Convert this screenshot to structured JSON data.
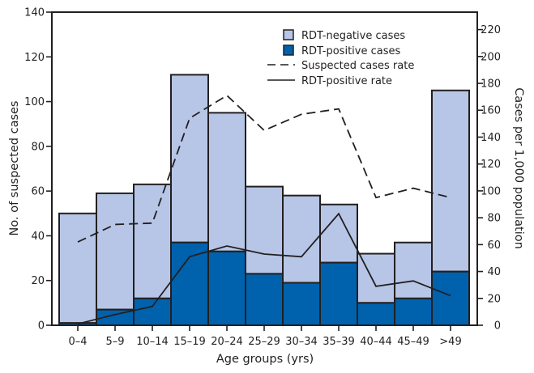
{
  "chart_data": {
    "type": "bar",
    "stacked": true,
    "title": "",
    "xlabel": "Age groups (yrs)",
    "ylabel": "No. of suspected cases",
    "y2label": "Cases per 1,000 population",
    "ylim": [
      0,
      140
    ],
    "y2lim": [
      0,
      233
    ],
    "yticks": [
      0,
      20,
      40,
      60,
      80,
      100,
      120,
      140
    ],
    "y2ticks": [
      0,
      20,
      40,
      60,
      80,
      100,
      120,
      140,
      160,
      180,
      200,
      220
    ],
    "grid": false,
    "legend_position": "top-right",
    "categories": [
      "0–4",
      "5–9",
      "10–14",
      "15–19",
      "20–24",
      "25–29",
      "30–34",
      "35–39",
      "40–44",
      "45–49",
      ">49"
    ],
    "series": [
      {
        "name": "RDT-positive cases",
        "kind": "bar",
        "axis": "left",
        "color": "#0061ad",
        "values": [
          1,
          7,
          12,
          37,
          33,
          23,
          19,
          28,
          10,
          12,
          24
        ]
      },
      {
        "name": "RDT-negative cases",
        "kind": "bar",
        "axis": "left",
        "color": "#b7c6e6",
        "values": [
          49,
          52,
          51,
          75,
          62,
          39,
          39,
          26,
          22,
          25,
          81
        ]
      },
      {
        "name": "Suspected cases rate",
        "kind": "line",
        "style": "dashed",
        "axis": "right",
        "color": "#231f20",
        "values": [
          62,
          75,
          76,
          154,
          171,
          145,
          157,
          161,
          95,
          102,
          95
        ]
      },
      {
        "name": "RDT-positive rate",
        "kind": "line",
        "style": "solid",
        "axis": "right",
        "color": "#231f20",
        "values": [
          1,
          8,
          14,
          51,
          59,
          53,
          51,
          83,
          29,
          33,
          22
        ]
      }
    ],
    "legend": [
      {
        "label": "RDT-negative cases",
        "type": "swatch",
        "color": "#b7c6e6"
      },
      {
        "label": "RDT-positive cases",
        "type": "swatch",
        "color": "#0061ad"
      },
      {
        "label": "Suspected cases rate",
        "type": "dashed-line"
      },
      {
        "label": "RDT-positive rate",
        "type": "solid-line"
      }
    ]
  }
}
